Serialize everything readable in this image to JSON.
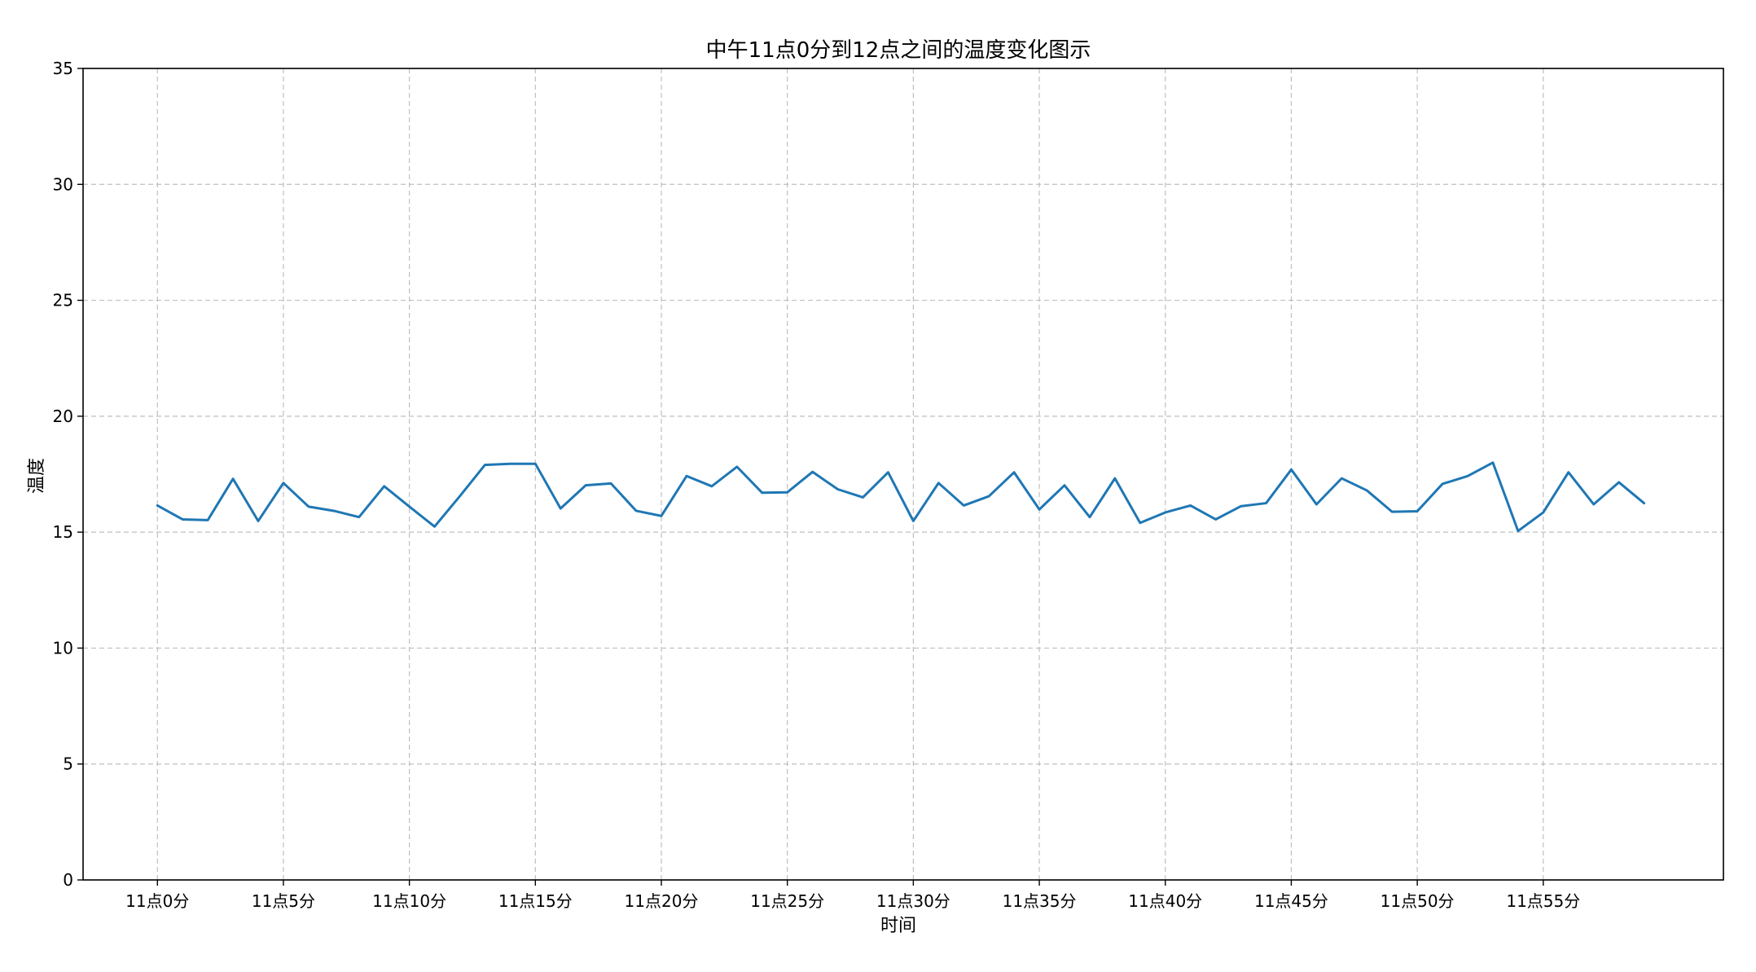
{
  "chart_data": {
    "type": "line",
    "title": "中午11点0分到12点之间的温度变化图示",
    "xlabel": "时间",
    "ylabel": "温度",
    "ylim": [
      0,
      35
    ],
    "xlim": [
      -2.95,
      62.15
    ],
    "yticks": [
      0,
      5,
      10,
      15,
      20,
      25,
      30,
      35
    ],
    "xticks": [
      0,
      5,
      10,
      15,
      20,
      25,
      30,
      35,
      40,
      45,
      50,
      55
    ],
    "xtick_labels": [
      "11点0分",
      "11点5分",
      "11点10分",
      "11点15分",
      "11点20分",
      "11点25分",
      "11点30分",
      "11点35分",
      "11点40分",
      "11点45分",
      "11点50分",
      "11点55分"
    ],
    "grid": true,
    "grid_style": "dashed",
    "line_color": "#1f77b4",
    "x": [
      0,
      1,
      2,
      3,
      4,
      5,
      6,
      7,
      8,
      9,
      10,
      11,
      12,
      13,
      14,
      15,
      16,
      17,
      18,
      19,
      20,
      21,
      22,
      23,
      24,
      25,
      26,
      27,
      28,
      29,
      30,
      31,
      32,
      33,
      34,
      35,
      36,
      37,
      38,
      39,
      40,
      41,
      42,
      43,
      44,
      45,
      46,
      47,
      48,
      49,
      50,
      51,
      52,
      53,
      54,
      55,
      56,
      57,
      58,
      59
    ],
    "series": [
      {
        "values": [
          16.15,
          15.55,
          15.52,
          17.3,
          15.48,
          17.12,
          16.1,
          15.92,
          15.65,
          16.98,
          16.1,
          15.24,
          16.55,
          17.9,
          17.95,
          17.95,
          16.02,
          17.02,
          17.1,
          15.92,
          15.7,
          17.42,
          16.98,
          17.82,
          16.7,
          16.72,
          17.6,
          16.85,
          16.5,
          17.58,
          15.48,
          17.12,
          16.15,
          16.55,
          17.58,
          15.98,
          17.02,
          15.65,
          17.32,
          15.4,
          15.85,
          16.15,
          15.55,
          16.12,
          16.25,
          17.7,
          16.2,
          17.32,
          16.8,
          15.88,
          15.9,
          17.08,
          17.42,
          18.0,
          15.05,
          15.85,
          17.58,
          16.2,
          17.15,
          16.25
        ]
      }
    ]
  }
}
